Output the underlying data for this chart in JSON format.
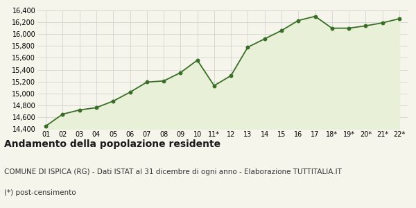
{
  "labels": [
    "01",
    "02",
    "03",
    "04",
    "05",
    "06",
    "07",
    "08",
    "09",
    "10",
    "11*",
    "12",
    "13",
    "14",
    "15",
    "16",
    "17",
    "18*",
    "19*",
    "20*",
    "21*",
    "22*"
  ],
  "values": [
    14450,
    14650,
    14720,
    14760,
    14870,
    15020,
    15190,
    15210,
    15350,
    15560,
    15130,
    15300,
    15780,
    15920,
    16060,
    16230,
    16300,
    16100,
    16100,
    16140,
    16190,
    16260
  ],
  "line_color": "#3a6e28",
  "fill_color": "#e8f0d8",
  "marker_color": "#3a6e28",
  "bg_color": "#f5f5ec",
  "grid_color": "#cccccc",
  "ylim": [
    14400,
    16400
  ],
  "yticks": [
    14400,
    14600,
    14800,
    15000,
    15200,
    15400,
    15600,
    15800,
    16000,
    16200,
    16400
  ],
  "title": "Andamento della popolazione residente",
  "subtitle": "COMUNE DI ISPICA (RG) - Dati ISTAT al 31 dicembre di ogni anno - Elaborazione TUTTITALIA.IT",
  "footnote": "(*) post-censimento",
  "title_fontsize": 10,
  "subtitle_fontsize": 7.5,
  "footnote_fontsize": 7.5
}
